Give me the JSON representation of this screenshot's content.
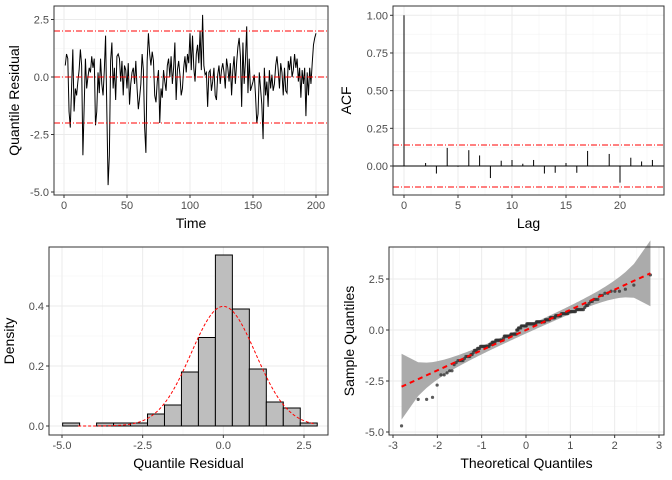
{
  "chart_data": [
    {
      "type": "line",
      "xlabel": "Time",
      "ylabel": "Quantile Residual",
      "xlim": [
        0,
        200
      ],
      "ylim": [
        -5,
        2.7
      ],
      "xticks": [
        0,
        50,
        100,
        150,
        200
      ],
      "yticks": [
        -5.0,
        -2.5,
        0.0,
        2.5
      ],
      "ytick_labels": [
        "-5.0",
        "-2.5",
        "0.0",
        "2.5"
      ],
      "reference_lines": [
        {
          "y": 2,
          "color": "#ff0000",
          "style": "dotdash"
        },
        {
          "y": 0,
          "color": "#ff0000",
          "style": "dotdash"
        },
        {
          "y": -2,
          "color": "#ff0000",
          "style": "dotdash"
        }
      ],
      "grid": true,
      "x": "1..200",
      "values": [
        0.5,
        1.0,
        0.8,
        -1.5,
        -2.2,
        -0.5,
        1.2,
        -1.5,
        -0.5,
        -0.8,
        -0.2,
        0.3,
        1.2,
        0.5,
        -3.4,
        -1.3,
        0.8,
        -0.5,
        0.0,
        0.4,
        0.2,
        0.9,
        0.4,
        0.8,
        -2.1,
        -1.5,
        0.2,
        -0.7,
        0.8,
        -0.3,
        -0.8,
        0.3,
        1.8,
        -1.5,
        -4.7,
        -3.4,
        0.7,
        1.5,
        -0.5,
        0.4,
        -1.0,
        0.9,
        1.0,
        0.8,
        -0.2,
        0.7,
        -0.8,
        0.5,
        0.3,
        -0.5,
        0.6,
        -1.2,
        -0.3,
        0.2,
        0.4,
        -0.3,
        0.7,
        -0.5,
        -1.4,
        -0.9,
        -0.3,
        1.0,
        0.3,
        -2.2,
        -3.3,
        0.7,
        1.9,
        1.0,
        0.5,
        1.1,
        0.7,
        -0.8,
        -1.1,
        -0.2,
        0.3,
        -2.0,
        -0.5,
        -0.9,
        0.3,
        -0.2,
        -0.6,
        0.5,
        0.8,
        0.0,
        0.9,
        -0.3,
        0.4,
        1.5,
        -1.0,
        0.3,
        0.7,
        0.1,
        -0.8,
        -0.5,
        0.4,
        0.9,
        0.2,
        1.0,
        0.6,
        1.9,
        0.3,
        1.8,
        0.4,
        -0.2,
        1.0,
        1.4,
        0.6,
        2.0,
        0.3,
        2.7,
        0.5,
        0.1,
        0.2,
        -1.3,
        0.2,
        0.3,
        -0.6,
        -0.2,
        0.4,
        -0.8,
        -1.0,
        0.1,
        0.5,
        -0.3,
        0.3,
        0.6,
        0.2,
        -0.5,
        0.8,
        0.4,
        -0.2,
        0.6,
        -0.8,
        0.3,
        0.9,
        -0.3,
        0.6,
        1.3,
        1.7,
        0.9,
        -1.3,
        1.5,
        -0.3,
        0.7,
        2.2,
        -0.7,
        0.8,
        -0.6,
        -0.4,
        -0.2,
        0.1,
        -0.8,
        -2.0,
        -1.6,
        0.2,
        -0.5,
        -1.2,
        -2.7,
        0.4,
        -0.8,
        -0.2,
        -1.3,
        0.3,
        -0.5,
        0.1,
        -0.6,
        -0.3,
        0.5,
        0.9,
        0.3,
        -0.5,
        0.6,
        0.2,
        -0.8,
        0.4,
        -0.6,
        -0.7,
        0.7,
        0.3,
        0.9,
        0.0,
        0.3,
        1.0,
        0.4,
        0.8,
        -0.2,
        0.4,
        -0.9,
        0.3,
        -0.3,
        0.4,
        -1.7,
        0.2,
        -0.8,
        0.4,
        -0.3,
        0.6,
        1.4,
        1.7,
        1.9
      ]
    },
    {
      "type": "bar",
      "subtype": "acf",
      "xlabel": "Lag",
      "ylabel": "ACF",
      "xlim": [
        0,
        23
      ],
      "ylim": [
        -0.139,
        1.0
      ],
      "xticks": [
        0,
        5,
        10,
        15,
        20
      ],
      "yticks": [
        0.0,
        0.25,
        0.5,
        0.75,
        1.0
      ],
      "ytick_labels": [
        "0.00",
        "0.25",
        "0.50",
        "0.75",
        "1.00"
      ],
      "confidence_bounds": [
        0.139,
        -0.139
      ],
      "bound_color": "#ff0000",
      "grid": true,
      "lags": [
        0,
        1,
        2,
        3,
        4,
        5,
        6,
        7,
        8,
        9,
        10,
        11,
        12,
        13,
        14,
        15,
        16,
        17,
        18,
        19,
        20,
        21,
        22,
        23
      ],
      "values": [
        1.0,
        0.0,
        0.02,
        -0.05,
        0.12,
        -0.005,
        0.105,
        0.07,
        -0.08,
        0.035,
        0.04,
        0.015,
        0.04,
        -0.05,
        -0.045,
        0.02,
        -0.045,
        0.1,
        0.0,
        0.08,
        -0.11,
        0.055,
        0.03,
        0.04
      ]
    },
    {
      "type": "bar",
      "subtype": "histogram",
      "xlabel": "Quantile Residual",
      "ylabel": "Density",
      "xlim": [
        -5,
        2.9
      ],
      "ylim": [
        0,
        0.57
      ],
      "xticks": [
        -5.0,
        -2.5,
        0.0,
        2.5
      ],
      "xtick_labels": [
        "-5.0",
        "-2.5",
        "0.0",
        "2.5"
      ],
      "yticks": [
        0.0,
        0.2,
        0.4
      ],
      "ytick_labels": [
        "0.0",
        "0.2",
        "0.4"
      ],
      "bin_start": -4.98,
      "bin_width": 0.526,
      "values": [
        0.01,
        0.0,
        0.01,
        0.01,
        0.01,
        0.04,
        0.07,
        0.18,
        0.295,
        0.57,
        0.39,
        0.19,
        0.08,
        0.06,
        0.01
      ],
      "bar_fill": "#bebebe",
      "overlay": {
        "type": "normal-density",
        "mean": 0,
        "sd": 1,
        "color": "#ff0000",
        "style": "dashed"
      },
      "grid": true
    },
    {
      "type": "scatter",
      "subtype": "qq",
      "xlabel": "Theoretical Quantiles",
      "ylabel": "Sample Quantiles",
      "xlim": [
        -3,
        3
      ],
      "ylim": [
        -5,
        3.6
      ],
      "xticks": [
        -3,
        -2,
        -1,
        0,
        1,
        2,
        3
      ],
      "yticks": [
        -5.0,
        -2.5,
        0.0,
        2.5
      ],
      "ytick_labels": [
        "-5.0",
        "-2.5",
        "0.0",
        "2.5"
      ],
      "sample": "quantile residuals of panel 1",
      "reference_line": {
        "intercept": 0,
        "slope": 0.99,
        "color": "#ff0000",
        "style": "dashed"
      },
      "band_color": "#a6a6a6",
      "grid": true
    }
  ]
}
